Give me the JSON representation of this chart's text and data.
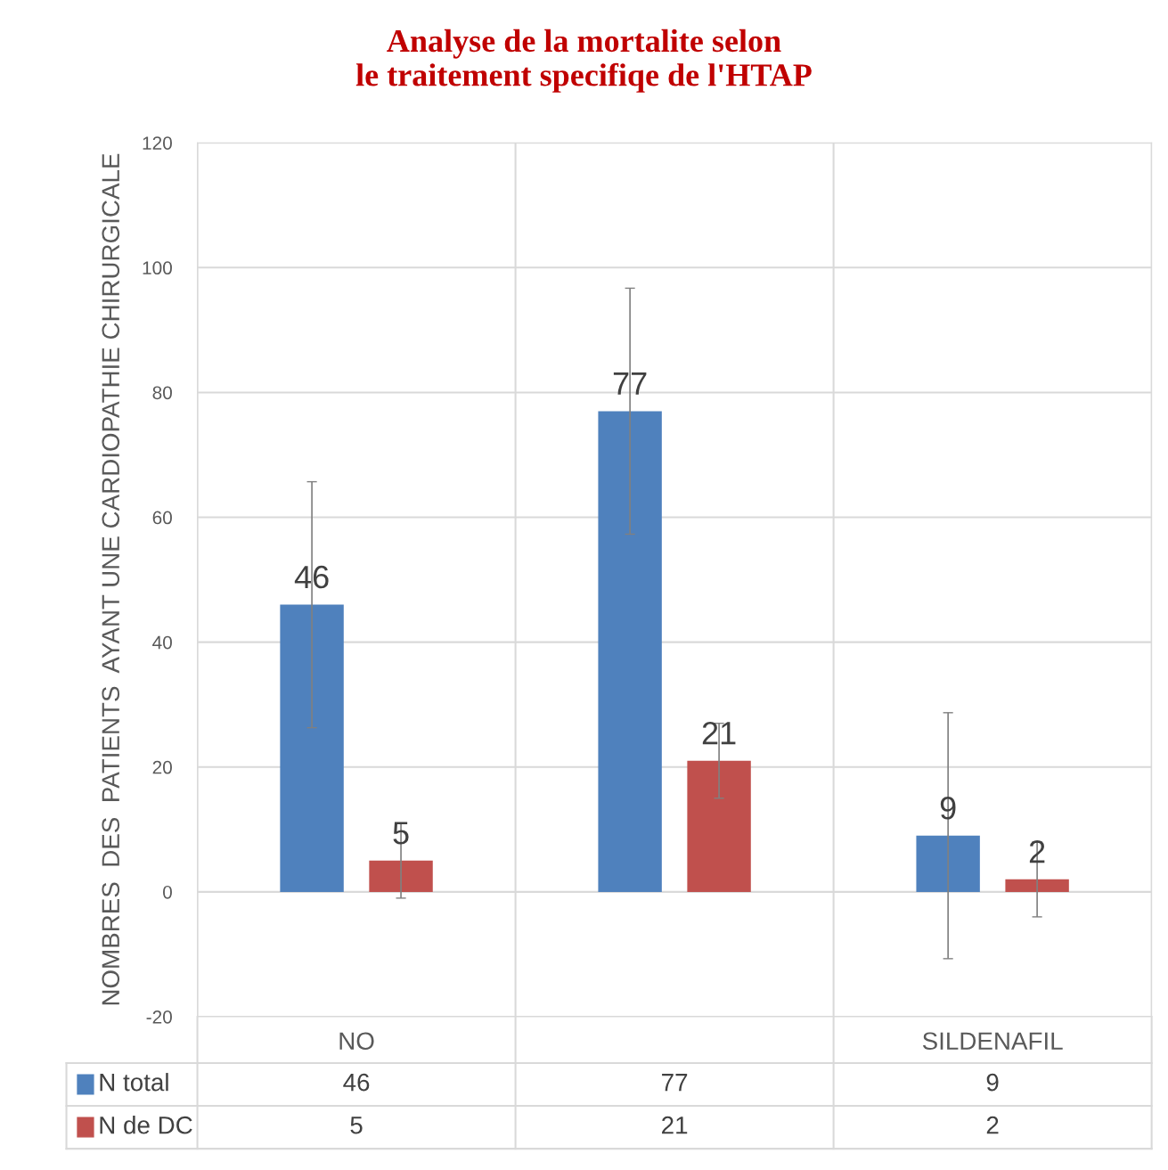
{
  "chart_data": {
    "type": "bar",
    "title": "Analyse de la mortalite selon\nle traitement specifiqe de l'HTAP",
    "ylabel": "NOMBRES  DES  PATIENTS  AYANT UNE CARDIOPATHIE CHIRURGICALE",
    "categories": [
      "NO",
      null,
      "SILDENAFIL"
    ],
    "series": [
      {
        "name": "N total",
        "color": "#4f81bd",
        "values": [
          46,
          77,
          9
        ],
        "value_labels": [
          "46",
          "77",
          "9"
        ],
        "errors": [
          19.7,
          19.7,
          19.7
        ]
      },
      {
        "name": "N de DC",
        "color": "#c0504d",
        "values": [
          5,
          21,
          2
        ],
        "value_labels": [
          "5",
          "21",
          "2"
        ],
        "errors": [
          6,
          6,
          6
        ]
      }
    ],
    "ylim": [
      -20,
      120
    ],
    "yticks": [
      -20,
      0,
      20,
      40,
      60,
      80,
      100,
      120
    ],
    "grid": "y",
    "legend": "bottom"
  }
}
